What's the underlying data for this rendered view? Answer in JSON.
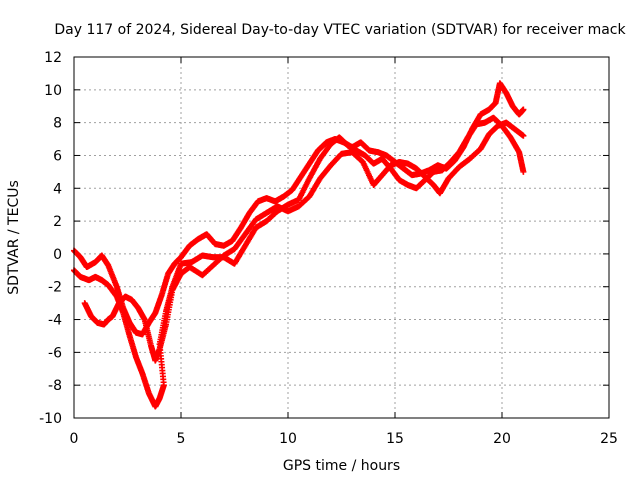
{
  "chart_data": {
    "type": "scatter",
    "title": "Day 117 of 2024, Sidereal Day-to-day VTEC variation (SDTVAR) for receiver mack",
    "xlabel": "GPS time / hours",
    "ylabel": "SDTVAR / TECUs",
    "xlim": [
      0,
      25
    ],
    "ylim": [
      -10,
      12
    ],
    "grid": true,
    "xticks": [
      0,
      5,
      10,
      15,
      20,
      25
    ],
    "yticks": [
      -10,
      -8,
      -6,
      -4,
      -2,
      0,
      2,
      4,
      6,
      8,
      10,
      12
    ],
    "color": "#ff0000",
    "marker": "plus",
    "series": [
      {
        "values": [
          [
            0.0,
            0.2
          ],
          [
            0.3,
            -0.2
          ],
          [
            0.6,
            -0.8
          ],
          [
            1.0,
            -0.5
          ],
          [
            1.3,
            -0.1
          ],
          [
            1.6,
            -0.7
          ],
          [
            2.0,
            -2.0
          ],
          [
            2.3,
            -3.3
          ],
          [
            2.6,
            -4.2
          ],
          [
            2.9,
            -4.8
          ],
          [
            3.2,
            -4.9
          ],
          [
            3.5,
            -4.2
          ],
          [
            3.8,
            -3.6
          ],
          [
            4.1,
            -2.5
          ],
          [
            4.4,
            -1.2
          ],
          [
            4.7,
            -0.6
          ],
          [
            5.0,
            -0.2
          ],
          [
            5.4,
            0.5
          ],
          [
            5.8,
            0.9
          ],
          [
            6.2,
            1.2
          ],
          [
            6.6,
            0.6
          ],
          [
            7.0,
            0.5
          ],
          [
            7.4,
            0.8
          ],
          [
            7.8,
            1.6
          ],
          [
            8.2,
            2.5
          ],
          [
            8.6,
            3.2
          ],
          [
            9.0,
            3.4
          ],
          [
            9.4,
            3.2
          ],
          [
            9.8,
            3.5
          ],
          [
            10.2,
            3.9
          ],
          [
            10.6,
            4.7
          ],
          [
            11.0,
            5.5
          ],
          [
            11.4,
            6.3
          ],
          [
            11.8,
            6.8
          ],
          [
            12.2,
            7.0
          ],
          [
            12.6,
            6.8
          ],
          [
            13.0,
            6.5
          ],
          [
            13.4,
            6.8
          ],
          [
            13.8,
            6.3
          ],
          [
            14.2,
            6.2
          ],
          [
            14.6,
            6.0
          ],
          [
            15.0,
            5.6
          ],
          [
            15.4,
            5.2
          ],
          [
            15.8,
            4.8
          ],
          [
            16.2,
            4.9
          ],
          [
            16.6,
            5.1
          ],
          [
            17.0,
            5.4
          ],
          [
            17.4,
            5.2
          ],
          [
            17.8,
            5.7
          ],
          [
            18.2,
            6.5
          ],
          [
            18.6,
            7.6
          ],
          [
            19.0,
            8.5
          ],
          [
            19.4,
            8.8
          ],
          [
            19.7,
            9.2
          ],
          [
            19.9,
            10.4
          ],
          [
            20.2,
            9.8
          ],
          [
            20.5,
            9.0
          ],
          [
            20.8,
            8.5
          ],
          [
            21.0,
            8.8
          ]
        ]
      },
      {
        "values": [
          [
            0.0,
            -1.0
          ],
          [
            0.3,
            -1.4
          ],
          [
            0.7,
            -1.6
          ],
          [
            1.0,
            -1.4
          ],
          [
            1.3,
            -1.6
          ],
          [
            1.6,
            -1.9
          ],
          [
            2.0,
            -2.6
          ],
          [
            2.3,
            -3.6
          ],
          [
            2.6,
            -5.0
          ],
          [
            2.9,
            -6.3
          ],
          [
            3.2,
            -7.3
          ],
          [
            3.5,
            -8.5
          ],
          [
            3.8,
            -9.3
          ],
          [
            4.0,
            -8.8
          ],
          [
            4.2,
            -8.0
          ],
          [
            4.0,
            -5.5
          ],
          [
            4.3,
            -3.5
          ],
          [
            4.6,
            -2.0
          ],
          [
            5.0,
            -0.6
          ],
          [
            5.5,
            -0.5
          ],
          [
            6.0,
            -0.1
          ],
          [
            6.5,
            -0.2
          ],
          [
            7.0,
            -0.2
          ],
          [
            7.5,
            -0.6
          ],
          [
            8.0,
            0.5
          ],
          [
            8.5,
            1.6
          ],
          [
            9.0,
            2.0
          ],
          [
            9.5,
            2.6
          ],
          [
            10.0,
            3.0
          ],
          [
            10.5,
            3.3
          ],
          [
            11.0,
            4.6
          ],
          [
            11.5,
            5.8
          ],
          [
            12.0,
            6.7
          ],
          [
            12.4,
            7.1
          ],
          [
            12.8,
            6.6
          ],
          [
            13.2,
            6.3
          ],
          [
            13.6,
            6.0
          ],
          [
            14.0,
            5.5
          ],
          [
            14.4,
            5.8
          ],
          [
            14.8,
            5.2
          ],
          [
            15.2,
            4.5
          ],
          [
            15.6,
            4.2
          ],
          [
            16.0,
            4.0
          ],
          [
            16.4,
            4.5
          ],
          [
            16.8,
            5.0
          ],
          [
            17.2,
            5.1
          ],
          [
            17.6,
            5.6
          ],
          [
            18.0,
            6.2
          ],
          [
            18.4,
            7.1
          ],
          [
            18.8,
            7.9
          ],
          [
            19.2,
            8.0
          ],
          [
            19.6,
            8.3
          ],
          [
            20.0,
            7.8
          ],
          [
            20.4,
            7.1
          ],
          [
            20.8,
            6.2
          ],
          [
            21.0,
            5.0
          ]
        ]
      },
      {
        "values": [
          [
            0.5,
            -3.0
          ],
          [
            0.8,
            -3.8
          ],
          [
            1.1,
            -4.2
          ],
          [
            1.4,
            -4.3
          ],
          [
            1.6,
            -4.0
          ],
          [
            1.8,
            -3.8
          ],
          [
            2.1,
            -3.0
          ],
          [
            2.4,
            -2.6
          ],
          [
            2.7,
            -2.8
          ],
          [
            3.0,
            -3.3
          ],
          [
            3.3,
            -4.0
          ],
          [
            3.6,
            -5.6
          ],
          [
            3.8,
            -6.5
          ],
          [
            4.0,
            -5.8
          ],
          [
            4.3,
            -4.3
          ],
          [
            4.6,
            -2.2
          ],
          [
            5.0,
            -1.2
          ],
          [
            5.4,
            -0.8
          ],
          [
            6.0,
            -1.3
          ],
          [
            6.5,
            -0.7
          ],
          [
            7.0,
            -0.1
          ],
          [
            7.5,
            0.3
          ],
          [
            8.0,
            1.2
          ],
          [
            8.5,
            2.1
          ],
          [
            9.0,
            2.5
          ],
          [
            9.5,
            2.9
          ],
          [
            10.0,
            2.6
          ],
          [
            10.5,
            2.9
          ],
          [
            11.0,
            3.5
          ],
          [
            11.5,
            4.6
          ],
          [
            12.0,
            5.4
          ],
          [
            12.5,
            6.1
          ],
          [
            13.0,
            6.2
          ],
          [
            13.5,
            5.6
          ],
          [
            14.0,
            4.2
          ],
          [
            14.4,
            4.8
          ],
          [
            14.8,
            5.4
          ],
          [
            15.2,
            5.6
          ],
          [
            15.6,
            5.5
          ],
          [
            16.0,
            5.2
          ],
          [
            16.4,
            4.7
          ],
          [
            16.8,
            4.2
          ],
          [
            17.1,
            3.7
          ],
          [
            17.5,
            4.6
          ],
          [
            18.0,
            5.3
          ],
          [
            18.5,
            5.8
          ],
          [
            19.0,
            6.4
          ],
          [
            19.4,
            7.3
          ],
          [
            19.8,
            7.8
          ],
          [
            20.2,
            8.0
          ],
          [
            20.6,
            7.6
          ],
          [
            21.0,
            7.2
          ]
        ]
      }
    ]
  }
}
